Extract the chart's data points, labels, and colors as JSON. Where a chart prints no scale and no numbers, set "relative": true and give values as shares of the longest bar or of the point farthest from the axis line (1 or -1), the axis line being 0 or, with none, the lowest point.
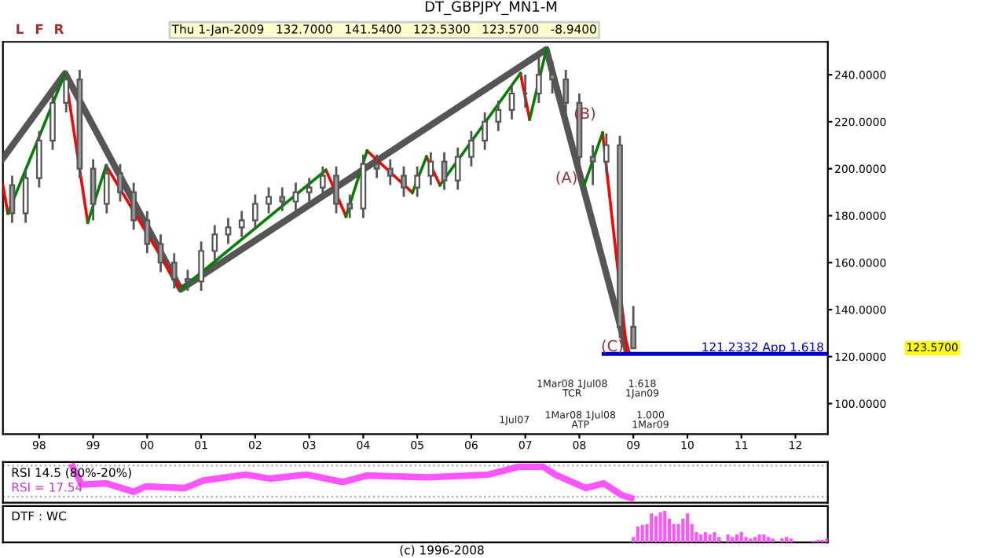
{
  "chart_data": [
    {
      "type": "candlestick",
      "title": "DT_GBPJPY_MN1-M",
      "subtitle": "Thu 1-Jan-2009   132.7000   141.5400   123.5300   123.5700   -8.9400",
      "x": [
        1997.5,
        1997.75,
        1998.0,
        1998.25,
        1998.5,
        1998.75,
        1999.0,
        1999.25,
        1999.5,
        1999.75,
        2000.0,
        2000.25,
        2000.5,
        2000.75,
        2001.0,
        2001.25,
        2001.5,
        2001.75,
        2002.0,
        2002.25,
        2002.5,
        2002.75,
        2003.0,
        2003.25,
        2003.5,
        2003.75,
        2004.0,
        2004.25,
        2004.5,
        2004.75,
        2005.0,
        2005.25,
        2005.5,
        2005.75,
        2006.0,
        2006.25,
        2006.5,
        2006.75,
        2007.0,
        2007.25,
        2007.5,
        2007.75,
        2008.0,
        2008.25,
        2008.5,
        2008.75,
        2009.0
      ],
      "ohlc": [
        [
          193,
          197,
          177,
          181
        ],
        [
          181,
          200,
          177,
          196
        ],
        [
          196,
          216,
          192,
          212
        ],
        [
          212,
          232,
          208,
          228
        ],
        [
          228,
          241,
          224,
          238
        ],
        [
          238,
          242,
          196,
          200
        ],
        [
          200,
          204,
          178,
          185
        ],
        [
          185,
          202,
          181,
          198
        ],
        [
          198,
          202,
          186,
          190
        ],
        [
          190,
          194,
          174,
          178
        ],
        [
          178,
          182,
          164,
          168
        ],
        [
          168,
          172,
          156,
          160
        ],
        [
          160,
          164,
          149,
          153
        ],
        [
          153,
          157,
          148,
          152
        ],
        [
          152,
          169,
          148,
          165
        ],
        [
          165,
          176,
          161,
          172
        ],
        [
          172,
          179,
          168,
          175
        ],
        [
          175,
          182,
          171,
          178
        ],
        [
          178,
          189,
          174,
          185
        ],
        [
          185,
          192,
          181,
          188
        ],
        [
          188,
          192,
          182,
          186
        ],
        [
          186,
          194,
          182,
          190
        ],
        [
          190,
          196,
          186,
          192
        ],
        [
          192,
          201,
          188,
          197
        ],
        [
          197,
          201,
          181,
          185
        ],
        [
          185,
          189,
          179,
          183
        ],
        [
          183,
          206,
          179,
          202
        ],
        [
          202,
          206,
          196,
          200
        ],
        [
          200,
          204,
          193,
          197
        ],
        [
          197,
          201,
          188,
          192
        ],
        [
          192,
          201,
          188,
          197
        ],
        [
          197,
          207,
          193,
          203
        ],
        [
          203,
          207,
          191,
          195
        ],
        [
          195,
          209,
          191,
          205
        ],
        [
          205,
          216,
          201,
          212
        ],
        [
          212,
          224,
          208,
          220
        ],
        [
          220,
          229,
          216,
          225
        ],
        [
          225,
          236,
          221,
          232
        ],
        [
          232,
          240,
          226,
          232
        ],
        [
          232,
          250,
          228,
          240
        ],
        [
          240,
          246,
          232,
          238
        ],
        [
          238,
          242,
          220,
          228
        ],
        [
          228,
          232,
          198,
          205
        ],
        [
          205,
          210,
          193,
          203
        ],
        [
          203,
          215,
          198,
          210
        ],
        [
          210,
          214,
          128,
          132.7
        ],
        [
          132.7,
          141.54,
          123.53,
          123.57
        ]
      ],
      "color": "#555555",
      "series": [
        {
          "type": "line",
          "color": "#555555",
          "x": [
            1997.33,
            1998.48,
            2000.62,
            2007.39,
            2008.88
          ],
          "values": [
            204.4,
            240.6,
            148.6,
            250.8,
            122.5
          ]
        },
        {
          "type": "line",
          "color": "#ff0000",
          "x": [
            1997.33,
            1997.42,
            1997.9,
            1998.48,
            1998.9,
            1999.0,
            1999.24,
            2000.62,
            2001.0,
            2003.31,
            2003.68,
            2003.8,
            2004.07,
            2004.91,
            2005.0,
            2005.17,
            2005.42,
            2006.0,
            2006.91,
            2007.08,
            2008.0,
            2008.43,
            2008.88
          ],
          "values": [
            193.0,
            181.0,
            null,
            240.6,
            177.1,
            null,
            201.3,
            148.6,
            null,
            199.4,
            179.7,
            null,
            207.6,
            189.8,
            null,
            205.1,
            193.0,
            null,
            240.6,
            221.0,
            null,
            215.2,
            122.5
          ]
        },
        {
          "type": "line",
          "color": "#008000",
          "x": [
            1997.42,
            1998.48,
            1998.7,
            1998.9,
            1999.24,
            1999.5,
            2000.62,
            2003.31,
            2003.5,
            2003.68,
            2004.07,
            2004.5,
            2004.91,
            2005.17,
            2005.3,
            2005.42,
            2006.91,
            2007.0,
            2007.08,
            2007.39,
            2007.8,
            2008.09,
            2008.43
          ],
          "values": [
            181.0,
            240.6,
            null,
            177.1,
            201.3,
            null,
            148.6,
            199.4,
            null,
            179.7,
            207.6,
            null,
            189.8,
            205.1,
            null,
            193.0,
            240.6,
            null,
            221.0,
            250.8,
            null,
            193.0,
            215.2
          ]
        },
        {
          "type": "line",
          "name": "121.2332 App 1.618",
          "color": "#0000cc",
          "x": [
            2008.45,
            2012.6
          ],
          "values": [
            121.2,
            121.2
          ]
        }
      ],
      "annotations": [
        "L",
        "F",
        "R",
        "1Mar08 1Jul08\nTCR",
        "1.618\n1Jan09",
        "1Jul07",
        "1Mar08 1Jul08\nATP",
        "1.000\n1Mar09",
        {
          "text": "(A)",
          "x": 2008.09,
          "y": 189.8
        },
        {
          "text": "(B)",
          "x": 2008.43,
          "y": 217.1
        },
        {
          "text": "(C)",
          "x": 2008.94,
          "y": 118.1
        },
        "123.5700"
      ],
      "xlim": [
        1997.33,
        2012.6
      ],
      "ylim": [
        87,
        254
      ],
      "xticks": [
        {
          "value": 1998,
          "label": "98"
        },
        {
          "value": 1999,
          "label": "99"
        },
        {
          "value": 2000,
          "label": "00"
        },
        {
          "value": 2001,
          "label": "01"
        },
        {
          "value": 2002,
          "label": "02"
        },
        {
          "value": 2003,
          "label": "03"
        },
        {
          "value": 2004,
          "label": "04"
        },
        {
          "value": 2005,
          "label": "05"
        },
        {
          "value": 2006,
          "label": "06"
        },
        {
          "value": 2007,
          "label": "07"
        },
        {
          "value": 2008,
          "label": "08"
        },
        {
          "value": 2009,
          "label": "09"
        },
        {
          "value": 2010,
          "label": "10"
        },
        {
          "value": 2011,
          "label": "11"
        },
        {
          "value": 2012,
          "label": "12"
        }
      ],
      "yticks": [
        {
          "value": 100,
          "label": "100.0000"
        },
        {
          "value": 120,
          "label": "120.0000"
        },
        {
          "value": 140,
          "label": "140.0000"
        },
        {
          "value": 160,
          "label": "160.0000"
        },
        {
          "value": 180,
          "label": "180.0000"
        },
        {
          "value": 200,
          "label": "200.0000"
        },
        {
          "value": 220,
          "label": "220.0000"
        },
        {
          "value": 240,
          "label": "240.0000"
        }
      ],
      "grid": false,
      "legend": false
    },
    {
      "type": "line",
      "title": "RSI 14.5 (80%-20%)",
      "relative": true,
      "xlim": [
        1997.33,
        2012.6
      ],
      "series": [
        {
          "color": "#ff55ff",
          "x": [
            1998.62,
            1998.79,
            1999.24,
            1999.75,
            1999.97,
            2000.7,
            2001.04,
            2001.82,
            2002.27,
            2002.95,
            2003.62,
            2004.07,
            2005.2,
            2006.32,
            2006.88,
            2007.33,
            2007.55,
            2008.12,
            2008.45,
            2008.79,
            2008.96
          ],
          "values": [
            1,
            0.43,
            0.47,
            0.2,
            0.37,
            0.32,
            0.56,
            0.75,
            0.62,
            0.75,
            0.51,
            0.72,
            0.66,
            0.75,
            1,
            1,
            0.75,
            0.32,
            0.47,
            0.09,
            0
          ]
        }
      ],
      "ref_lines": [
        {
          "axis": "y",
          "value": 1.04,
          "color": "#aaaaaa",
          "line_style": "dotted"
        },
        {
          "axis": "y",
          "value": 0.04,
          "color": "#aaaaaa",
          "line_style": "dotted"
        }
      ],
      "annotations": [
        "RSI = 17.54"
      ]
    },
    {
      "type": "bar",
      "title": "DTF : WC",
      "relative": true,
      "xlim": [
        1997.33,
        2012.6
      ],
      "color": "#ff55ff",
      "x": [
        2009.0,
        2009.083,
        2009.167,
        2009.25,
        2009.333,
        2009.417,
        2009.5,
        2009.583,
        2009.667,
        2009.75,
        2009.833,
        2009.917,
        2010.0,
        2010.083,
        2010.167,
        2010.25,
        2010.333,
        2010.417,
        2010.5,
        2010.583,
        2010.667,
        2010.75,
        2010.833,
        2010.917,
        2011.0,
        2011.083,
        2011.167,
        2011.25,
        2011.333,
        2011.417,
        2011.5,
        2011.583,
        2011.667,
        2011.75,
        2011.833,
        2011.917,
        2012.0,
        2012.083,
        2012.167,
        2012.25,
        2012.333,
        2012.417,
        2012.5,
        2012.583
      ],
      "values": [
        0.17,
        0.5,
        0.55,
        0.58,
        0.92,
        0.83,
        0.95,
        1,
        0.75,
        0.58,
        0.58,
        0.75,
        0.92,
        0.58,
        0.33,
        0.25,
        0.33,
        0.25,
        0.33,
        0.17,
        null,
        0.25,
        0.17,
        0.25,
        0.33,
        0.17,
        0.12,
        0.17,
        0.25,
        0.25,
        0.17,
        0.12,
        null,
        0.13,
        0.17,
        0.12,
        null,
        null,
        null,
        null,
        0.05,
        0.08,
        0.08,
        0.13
      ],
      "annotations": [
        "(c) 1996-2008"
      ]
    }
  ]
}
